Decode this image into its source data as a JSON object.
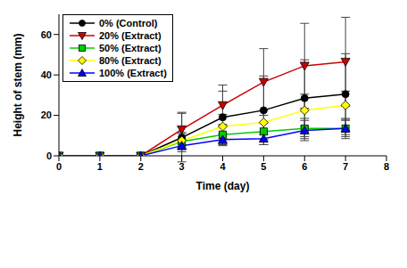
{
  "chart_data": {
    "type": "line",
    "x_label": "Time (day)",
    "y_label": "Height of stem (mm)",
    "x": [
      0,
      1,
      2,
      3,
      4,
      5,
      6,
      7
    ],
    "xlim": [
      0,
      8
    ],
    "xticks": [
      0,
      1,
      2,
      3,
      4,
      5,
      6,
      7,
      8
    ],
    "ylim": [
      0,
      70
    ],
    "yticks": [
      0,
      20,
      40,
      60
    ],
    "grid": false,
    "legend": "upper left",
    "series": [
      {
        "name": "0% (Control)",
        "color": "#000000",
        "marker": "circle",
        "values": [
          0,
          0,
          0,
          9,
          19,
          22.5,
          28.5,
          30.5
        ],
        "errors": [
          0,
          0,
          0,
          12,
          13,
          17,
          19,
          20
        ]
      },
      {
        "name": "20% (Extract)",
        "color": "#cc0000",
        "marker": "triangle-down",
        "values": [
          0,
          0,
          0,
          13,
          25,
          36.5,
          44.5,
          46.5
        ],
        "errors": [
          0,
          0,
          0,
          8.5,
          10,
          16.5,
          21,
          22
        ]
      },
      {
        "name": "50% (Extract)",
        "color": "#00cc00",
        "marker": "square",
        "values": [
          0,
          0,
          0,
          7,
          10.5,
          12,
          13.5,
          13.5
        ],
        "errors": [
          0,
          0,
          0,
          4,
          5,
          4,
          5,
          4
        ]
      },
      {
        "name": "80% (Extract)",
        "color": "#ffff00",
        "marker": "diamond",
        "values": [
          0,
          0,
          0,
          7.5,
          14.5,
          16.5,
          22.5,
          25
        ],
        "errors": [
          0,
          0,
          0,
          4,
          6,
          6,
          8,
          7
        ]
      },
      {
        "name": "100% (Extract)",
        "color": "#0000ff",
        "marker": "triangle-up",
        "values": [
          0,
          0,
          0,
          5,
          8,
          8.5,
          12.5,
          13.5
        ],
        "errors": [
          0,
          0,
          0,
          3,
          3,
          3,
          5,
          5
        ]
      }
    ]
  }
}
